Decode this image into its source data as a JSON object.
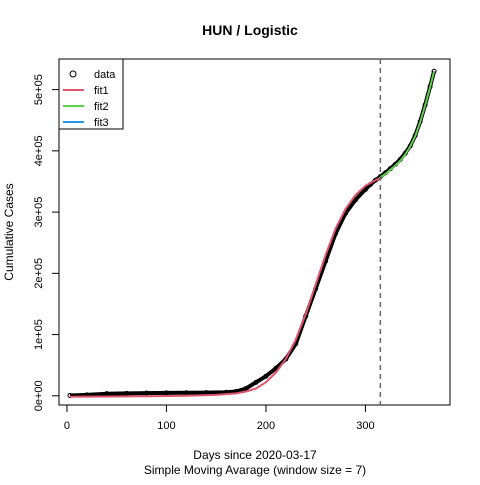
{
  "chart_data": {
    "type": "line",
    "title": "HUN / Logistic",
    "xlabel": "Days since 2020-03-17",
    "xlabel2": "Simple Moving Avarage (window size = 7)",
    "ylabel": "Cumulative Cases",
    "xlim": [
      -8,
      385
    ],
    "ylim": [
      -15000,
      550000
    ],
    "xticks": [
      0,
      100,
      200,
      300
    ],
    "xtick_labels": [
      "0",
      "100",
      "200",
      "300"
    ],
    "yticks": [
      0,
      100000,
      200000,
      300000,
      400000,
      500000
    ],
    "ytick_labels": [
      "0e+00",
      "1e+05",
      "2e+05",
      "3e+05",
      "4e+05",
      "5e+05"
    ],
    "vline": {
      "x": 315,
      "style": "dashed",
      "color": "#666666"
    },
    "legend": {
      "position": "top-left",
      "entries": [
        {
          "label": "data",
          "marker": "circle",
          "color": "#000000"
        },
        {
          "label": "fit1",
          "line": true,
          "color": "#df536b"
        },
        {
          "label": "fit2",
          "line": true,
          "color": "#61d04f"
        },
        {
          "label": "fit3",
          "line": true,
          "color": "#2297e6"
        }
      ]
    },
    "series": [
      {
        "name": "data",
        "color": "#000000",
        "x": [
          3,
          20,
          40,
          60,
          80,
          100,
          120,
          140,
          160,
          170,
          180,
          190,
          200,
          210,
          220,
          230,
          240,
          250,
          260,
          270,
          280,
          290,
          300,
          305,
          310,
          315,
          320,
          325,
          330,
          335,
          340,
          345,
          350,
          355,
          360,
          365,
          369
        ],
        "y": [
          500,
          1500,
          3500,
          4000,
          4500,
          4800,
          5000,
          5200,
          5800,
          7000,
          12000,
          22000,
          32000,
          45000,
          60000,
          85000,
          130000,
          175000,
          220000,
          265000,
          298000,
          320000,
          337000,
          345000,
          352000,
          358000,
          364000,
          371000,
          378000,
          386000,
          396000,
          408000,
          425000,
          448000,
          475000,
          505000,
          530000
        ]
      },
      {
        "name": "fit1",
        "color": "#df536b",
        "x": [
          3,
          40,
          80,
          120,
          150,
          170,
          180,
          190,
          200,
          210,
          220,
          230,
          240,
          250,
          260,
          270,
          280,
          290,
          300,
          310,
          315
        ],
        "y": [
          -1500,
          -1200,
          -800,
          0,
          1500,
          4000,
          7000,
          12000,
          22000,
          38000,
          60000,
          92000,
          133000,
          182000,
          230000,
          273000,
          305000,
          328000,
          343000,
          352000,
          356000
        ]
      },
      {
        "name": "fit2",
        "color": "#61d04f",
        "x": [
          315,
          320,
          325,
          330,
          335,
          340,
          345,
          350,
          355,
          360,
          365,
          369
        ],
        "y": [
          357000,
          362000,
          369000,
          376000,
          384000,
          394000,
          407000,
          424000,
          447000,
          474000,
          504000,
          530000
        ]
      }
    ]
  }
}
